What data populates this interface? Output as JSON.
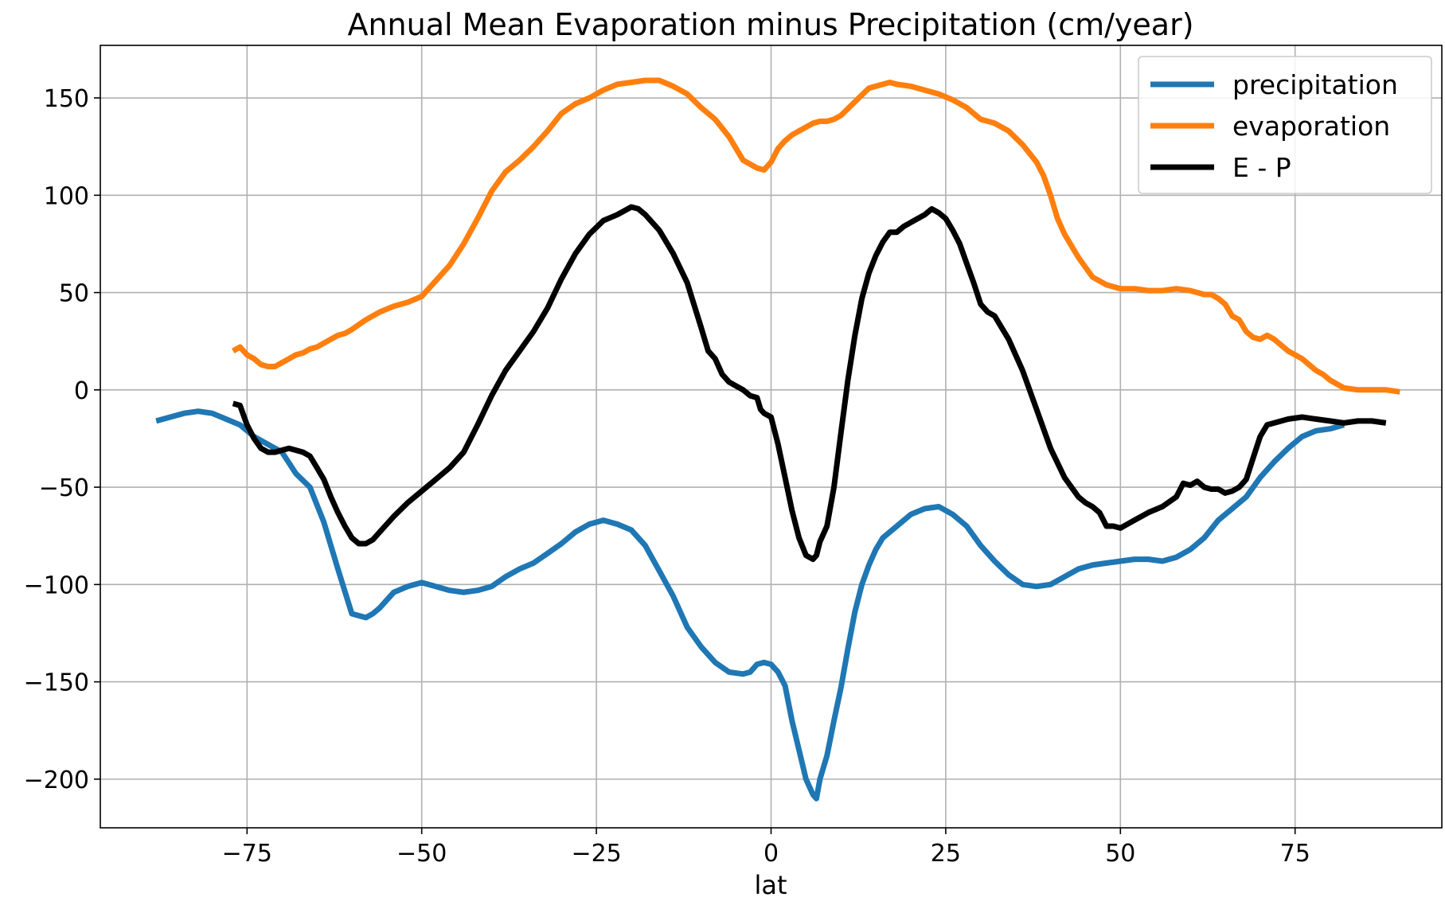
{
  "chart_data": {
    "type": "line",
    "title": "Annual Mean Evaporation minus Precipitation (cm/year)",
    "xlabel": "lat",
    "ylabel": "",
    "xlim": [
      -96,
      96
    ],
    "ylim": [
      -225,
      177
    ],
    "xticks": [
      -75,
      -50,
      -25,
      0,
      25,
      50,
      75
    ],
    "yticks": [
      -200,
      -150,
      -100,
      -50,
      0,
      50,
      100,
      150
    ],
    "xtick_labels": [
      "−75",
      "−50",
      "−25",
      "0",
      "25",
      "50",
      "75"
    ],
    "ytick_labels": [
      "−200",
      "−150",
      "−100",
      "−50",
      "0",
      "50",
      "100",
      "150"
    ],
    "grid": true,
    "legend_position": "top-right",
    "series": [
      {
        "name": "precipitation",
        "color": "#1f77b4",
        "x": [
          -88,
          -86,
          -84,
          -82,
          -80,
          -78,
          -76,
          -74,
          -72,
          -70,
          -68,
          -66,
          -64,
          -62,
          -60,
          -59,
          -58,
          -57,
          -56,
          -55,
          -54,
          -52,
          -50,
          -48,
          -46,
          -44,
          -42,
          -40,
          -38,
          -36,
          -34,
          -32,
          -30,
          -28,
          -26,
          -24,
          -22,
          -20,
          -18,
          -16,
          -14,
          -12,
          -10,
          -8,
          -6,
          -4,
          -3,
          -2,
          -1,
          0,
          1,
          2,
          3,
          4,
          5,
          6,
          6.5,
          7,
          8,
          9,
          10,
          11,
          12,
          13,
          14,
          15,
          16,
          17,
          18,
          20,
          22,
          24,
          26,
          28,
          30,
          32,
          34,
          36,
          38,
          40,
          42,
          44,
          46,
          48,
          50,
          52,
          54,
          56,
          58,
          60,
          62,
          64,
          66,
          68,
          70,
          72,
          74,
          76,
          78,
          80,
          82
        ],
        "y": [
          -16,
          -14,
          -12,
          -11,
          -12,
          -15,
          -18,
          -24,
          -28,
          -32,
          -43,
          -50,
          -68,
          -92,
          -115,
          -116,
          -117,
          -115,
          -112,
          -108,
          -104,
          -101,
          -99,
          -101,
          -103,
          -104,
          -103,
          -101,
          -96,
          -92,
          -89,
          -84,
          -79,
          -73,
          -69,
          -67,
          -69,
          -72,
          -80,
          -93,
          -106,
          -122,
          -132,
          -140,
          -145,
          -146,
          -145,
          -141,
          -140,
          -141,
          -145,
          -152,
          -170,
          -185,
          -200,
          -208,
          -210,
          -200,
          -188,
          -170,
          -153,
          -133,
          -114,
          -100,
          -90,
          -82,
          -76,
          -73,
          -70,
          -64,
          -61,
          -60,
          -64,
          -70,
          -80,
          -88,
          -95,
          -100,
          -101,
          -100,
          -96,
          -92,
          -90,
          -89,
          -88,
          -87,
          -87,
          -88,
          -86,
          -82,
          -76,
          -67,
          -61,
          -55,
          -45,
          -37,
          -30,
          -24,
          -21,
          -20,
          -18
        ]
      },
      {
        "name": "evaporation",
        "color": "#ff7f0e",
        "x": [
          -77,
          -76,
          -75,
          -74,
          -73,
          -72,
          -71,
          -70,
          -69,
          -68,
          -67,
          -66,
          -65,
          -64,
          -63,
          -62,
          -61,
          -60,
          -58,
          -56,
          -54,
          -52,
          -50,
          -48,
          -46,
          -44,
          -42,
          -40,
          -38,
          -36,
          -34,
          -32,
          -30,
          -28,
          -26,
          -24,
          -22,
          -20,
          -18,
          -16,
          -14,
          -12,
          -10,
          -8,
          -6,
          -4,
          -2,
          -1,
          0,
          1,
          2,
          3,
          4,
          5,
          6,
          7,
          8,
          9,
          10,
          12,
          14,
          16,
          17,
          18,
          20,
          22,
          24,
          26,
          28,
          30,
          32,
          34,
          36,
          38,
          39,
          40,
          41,
          42,
          44,
          46,
          48,
          50,
          52,
          54,
          56,
          58,
          60,
          62,
          63,
          64,
          65,
          66,
          67,
          68,
          69,
          70,
          71,
          72,
          74,
          76,
          78,
          79,
          80,
          82,
          84,
          86,
          88,
          90
        ],
        "y": [
          20,
          22,
          18,
          16,
          13,
          12,
          12,
          14,
          16,
          18,
          19,
          21,
          22,
          24,
          26,
          28,
          29,
          31,
          36,
          40,
          43,
          45,
          48,
          56,
          64,
          75,
          88,
          102,
          112,
          118,
          125,
          133,
          142,
          147,
          150,
          154,
          157,
          158,
          159,
          159,
          156,
          152,
          145,
          139,
          130,
          118,
          114,
          113,
          117,
          124,
          128,
          131,
          133,
          135,
          137,
          138,
          138,
          139,
          141,
          148,
          155,
          157,
          158,
          157,
          156,
          154,
          152,
          149,
          145,
          139,
          137,
          133,
          126,
          117,
          110,
          100,
          88,
          80,
          68,
          58,
          54,
          52,
          52,
          51,
          51,
          52,
          51,
          49,
          49,
          47,
          44,
          38,
          36,
          30,
          27,
          26,
          28,
          26,
          20,
          16,
          10,
          8,
          5,
          1,
          0,
          0,
          0,
          -1
        ]
      },
      {
        "name": "E - P",
        "color": "#000000",
        "x": [
          -77,
          -76,
          -75,
          -74,
          -73,
          -72,
          -71,
          -70,
          -69,
          -68,
          -67,
          -66,
          -65,
          -64,
          -63,
          -62,
          -61,
          -60,
          -59,
          -58,
          -57,
          -56,
          -54,
          -52,
          -50,
          -48,
          -46,
          -44,
          -42,
          -40,
          -38,
          -36,
          -34,
          -32,
          -30,
          -28,
          -26,
          -24,
          -22,
          -20,
          -19,
          -18,
          -16,
          -14,
          -12,
          -10,
          -9,
          -8,
          -7,
          -6,
          -5,
          -4,
          -3,
          -2,
          -1.5,
          -1,
          0,
          1,
          2,
          3,
          4,
          5,
          6,
          6.5,
          7,
          8,
          9,
          10,
          11,
          12,
          13,
          14,
          15,
          16,
          17,
          18,
          19,
          20,
          21,
          22,
          23,
          24,
          25,
          26,
          27,
          28,
          29,
          30,
          31,
          32,
          34,
          36,
          38,
          40,
          42,
          44,
          45,
          46,
          47,
          48,
          49,
          50,
          51,
          52,
          53,
          54,
          56,
          58,
          59,
          60,
          61,
          62,
          63,
          64,
          65,
          66,
          67,
          68,
          69,
          70,
          71,
          72,
          74,
          76,
          78,
          80,
          82,
          84,
          86,
          88
        ],
        "y": [
          -7,
          -8,
          -18,
          -25,
          -30,
          -32,
          -32,
          -31,
          -30,
          -31,
          -32,
          -34,
          -40,
          -46,
          -55,
          -63,
          -70,
          -76,
          -79,
          -79,
          -77,
          -73,
          -65,
          -58,
          -52,
          -46,
          -40,
          -32,
          -18,
          -3,
          10,
          20,
          30,
          42,
          57,
          70,
          80,
          87,
          90,
          94,
          93,
          90,
          82,
          70,
          55,
          32,
          20,
          16,
          8,
          4,
          2,
          0,
          -3,
          -4,
          -10,
          -12,
          -14,
          -28,
          -45,
          -62,
          -76,
          -85,
          -87,
          -85,
          -78,
          -70,
          -50,
          -22,
          5,
          28,
          47,
          60,
          69,
          76,
          81,
          81,
          84,
          86,
          88,
          90,
          93,
          91,
          88,
          82,
          75,
          65,
          55,
          44,
          40,
          38,
          26,
          10,
          -10,
          -30,
          -45,
          -55,
          -58,
          -60,
          -63,
          -70,
          -70,
          -71,
          -69,
          -67,
          -65,
          -63,
          -60,
          -55,
          -48,
          -49,
          -47,
          -50,
          -51,
          -51,
          -53,
          -52,
          -50,
          -46,
          -35,
          -24,
          -18,
          -17,
          -15,
          -14,
          -15,
          -16,
          -17,
          -16,
          -16,
          -17
        ]
      }
    ]
  }
}
